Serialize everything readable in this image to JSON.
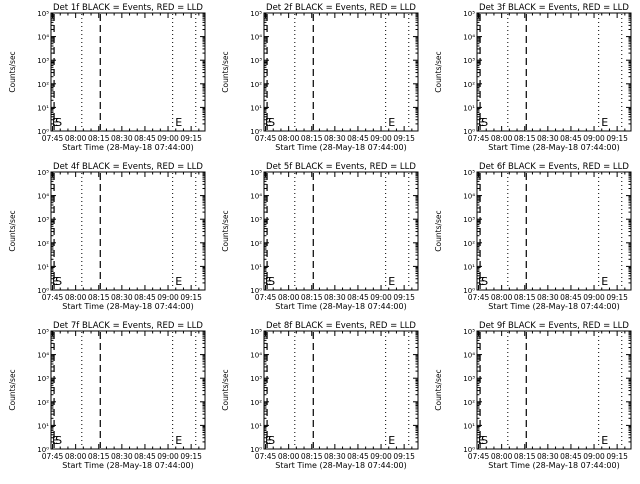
{
  "page": {
    "background": "#ffffff",
    "ink": "#000000"
  },
  "chart_data": [
    {
      "type": "line",
      "title": "Det 1f BLACK = Events, RED = LLD",
      "xlabel": "Start Time (28-May-18 07:44:00)",
      "ylabel": "Counts/sec",
      "xticks": [
        "07:45",
        "08:00",
        "08:15",
        "08:30",
        "08:45",
        "09:00",
        "09:15"
      ],
      "yticks": [
        "10⁰",
        "10¹",
        "10²",
        "10³",
        "10⁴",
        "10⁵"
      ],
      "yscale": "log",
      "ylim": [
        "10⁰",
        "10⁵"
      ],
      "xlim": [
        "07:44",
        "09:24"
      ],
      "series": [],
      "markers": {
        "dashed": [
          "07:46",
          "08:16"
        ],
        "dotted": [
          "08:04",
          "09:03",
          "09:18"
        ]
      },
      "annotations": [
        {
          "text": "E",
          "time": "07:44"
        },
        {
          "text": "S",
          "time": "07:46"
        },
        {
          "text": "E",
          "time": "09:04"
        }
      ]
    },
    {
      "type": "line",
      "title": "Det 2f BLACK = Events, RED = LLD",
      "xlabel": "Start Time (28-May-18 07:44:00)",
      "ylabel": "Counts/sec",
      "xticks": [
        "07:45",
        "08:00",
        "08:15",
        "08:30",
        "08:45",
        "09:00",
        "09:15"
      ],
      "yticks": [
        "10⁰",
        "10¹",
        "10²",
        "10³",
        "10⁴",
        "10⁵"
      ],
      "yscale": "log",
      "ylim": [
        "10⁰",
        "10⁵"
      ],
      "xlim": [
        "07:44",
        "09:24"
      ],
      "series": [],
      "markers": {
        "dashed": [
          "07:46",
          "08:16"
        ],
        "dotted": [
          "08:04",
          "09:03",
          "09:18"
        ]
      },
      "annotations": [
        {
          "text": "E",
          "time": "07:44"
        },
        {
          "text": "S",
          "time": "07:46"
        },
        {
          "text": "E",
          "time": "09:04"
        }
      ]
    },
    {
      "type": "line",
      "title": "Det 3f BLACK = Events, RED = LLD",
      "xlabel": "Start Time (28-May-18 07:44:00)",
      "ylabel": "Counts/sec",
      "xticks": [
        "07:45",
        "08:00",
        "08:15",
        "08:30",
        "08:45",
        "09:00",
        "09:15"
      ],
      "yticks": [
        "10⁰",
        "10¹",
        "10²",
        "10³",
        "10⁴",
        "10⁵"
      ],
      "yscale": "log",
      "ylim": [
        "10⁰",
        "10⁵"
      ],
      "xlim": [
        "07:44",
        "09:24"
      ],
      "series": [],
      "markers": {
        "dashed": [
          "07:46",
          "08:16"
        ],
        "dotted": [
          "08:04",
          "09:03",
          "09:18"
        ]
      },
      "annotations": [
        {
          "text": "E",
          "time": "07:44"
        },
        {
          "text": "S",
          "time": "07:46"
        },
        {
          "text": "E",
          "time": "09:04"
        }
      ]
    },
    {
      "type": "line",
      "title": "Det 4f BLACK = Events, RED = LLD",
      "xlabel": "Start Time (28-May-18 07:44:00)",
      "ylabel": "Counts/sec",
      "xticks": [
        "07:45",
        "08:00",
        "08:15",
        "08:30",
        "08:45",
        "09:00",
        "09:15"
      ],
      "yticks": [
        "10⁰",
        "10¹",
        "10²",
        "10³",
        "10⁴",
        "10⁵"
      ],
      "yscale": "log",
      "ylim": [
        "10⁰",
        "10⁵"
      ],
      "xlim": [
        "07:44",
        "09:24"
      ],
      "series": [],
      "markers": {
        "dashed": [
          "07:46",
          "08:16"
        ],
        "dotted": [
          "08:04",
          "09:03",
          "09:18"
        ]
      },
      "annotations": [
        {
          "text": "E",
          "time": "07:44"
        },
        {
          "text": "S",
          "time": "07:46"
        },
        {
          "text": "E",
          "time": "09:04"
        }
      ]
    },
    {
      "type": "line",
      "title": "Det 5f BLACK = Events, RED = LLD",
      "xlabel": "Start Time (28-May-18 07:44:00)",
      "ylabel": "Counts/sec",
      "xticks": [
        "07:45",
        "08:00",
        "08:15",
        "08:30",
        "08:45",
        "09:00",
        "09:15"
      ],
      "yticks": [
        "10⁰",
        "10¹",
        "10²",
        "10³",
        "10⁴",
        "10⁵"
      ],
      "yscale": "log",
      "ylim": [
        "10⁰",
        "10⁵"
      ],
      "xlim": [
        "07:44",
        "09:24"
      ],
      "series": [],
      "markers": {
        "dashed": [
          "07:46",
          "08:16"
        ],
        "dotted": [
          "08:04",
          "09:03",
          "09:18"
        ]
      },
      "annotations": [
        {
          "text": "E",
          "time": "07:44"
        },
        {
          "text": "S",
          "time": "07:46"
        },
        {
          "text": "E",
          "time": "09:04"
        }
      ]
    },
    {
      "type": "line",
      "title": "Det 6f BLACK = Events, RED = LLD",
      "xlabel": "Start Time (28-May-18 07:44:00)",
      "ylabel": "Counts/sec",
      "xticks": [
        "07:45",
        "08:00",
        "08:15",
        "08:30",
        "08:45",
        "09:00",
        "09:15"
      ],
      "yticks": [
        "10⁰",
        "10¹",
        "10²",
        "10³",
        "10⁴",
        "10⁵"
      ],
      "yscale": "log",
      "ylim": [
        "10⁰",
        "10⁵"
      ],
      "xlim": [
        "07:44",
        "09:24"
      ],
      "series": [],
      "markers": {
        "dashed": [
          "07:46",
          "08:16"
        ],
        "dotted": [
          "08:04",
          "09:03",
          "09:18"
        ]
      },
      "annotations": [
        {
          "text": "E",
          "time": "07:44"
        },
        {
          "text": "S",
          "time": "07:46"
        },
        {
          "text": "E",
          "time": "09:04"
        }
      ]
    },
    {
      "type": "line",
      "title": "Det 7f BLACK = Events, RED = LLD",
      "xlabel": "Start Time (28-May-18 07:44:00)",
      "ylabel": "Counts/sec",
      "xticks": [
        "07:45",
        "08:00",
        "08:15",
        "08:30",
        "08:45",
        "09:00",
        "09:15"
      ],
      "yticks": [
        "10⁰",
        "10¹",
        "10²",
        "10³",
        "10⁴",
        "10⁵"
      ],
      "yscale": "log",
      "ylim": [
        "10⁰",
        "10⁵"
      ],
      "xlim": [
        "07:44",
        "09:24"
      ],
      "series": [],
      "markers": {
        "dashed": [
          "07:46",
          "08:16"
        ],
        "dotted": [
          "08:04",
          "09:03",
          "09:18"
        ]
      },
      "annotations": [
        {
          "text": "E",
          "time": "07:44"
        },
        {
          "text": "S",
          "time": "07:46"
        },
        {
          "text": "E",
          "time": "09:04"
        }
      ]
    },
    {
      "type": "line",
      "title": "Det 8f BLACK = Events, RED = LLD",
      "xlabel": "Start Time (28-May-18 07:44:00)",
      "ylabel": "Counts/sec",
      "xticks": [
        "07:45",
        "08:00",
        "08:15",
        "08:30",
        "08:45",
        "09:00",
        "09:15"
      ],
      "yticks": [
        "10⁰",
        "10¹",
        "10²",
        "10³",
        "10⁴",
        "10⁵"
      ],
      "yscale": "log",
      "ylim": [
        "10⁰",
        "10⁵"
      ],
      "xlim": [
        "07:44",
        "09:24"
      ],
      "series": [],
      "markers": {
        "dashed": [
          "07:46",
          "08:16"
        ],
        "dotted": [
          "08:04",
          "09:03",
          "09:18"
        ]
      },
      "annotations": [
        {
          "text": "E",
          "time": "07:44"
        },
        {
          "text": "S",
          "time": "07:46"
        },
        {
          "text": "E",
          "time": "09:04"
        }
      ]
    },
    {
      "type": "line",
      "title": "Det 9f BLACK = Events, RED = LLD",
      "xlabel": "Start Time (28-May-18 07:44:00)",
      "ylabel": "Counts/sec",
      "xticks": [
        "07:45",
        "08:00",
        "08:15",
        "08:30",
        "08:45",
        "09:00",
        "09:15"
      ],
      "yticks": [
        "10⁰",
        "10¹",
        "10²",
        "10³",
        "10⁴",
        "10⁵"
      ],
      "yscale": "log",
      "ylim": [
        "10⁰",
        "10⁵"
      ],
      "xlim": [
        "07:44",
        "09:24"
      ],
      "series": [],
      "markers": {
        "dashed": [
          "07:46",
          "08:16"
        ],
        "dotted": [
          "08:04",
          "09:03",
          "09:18"
        ]
      },
      "annotations": [
        {
          "text": "E",
          "time": "07:44"
        },
        {
          "text": "S",
          "time": "07:46"
        },
        {
          "text": "E",
          "time": "09:04"
        }
      ]
    }
  ]
}
